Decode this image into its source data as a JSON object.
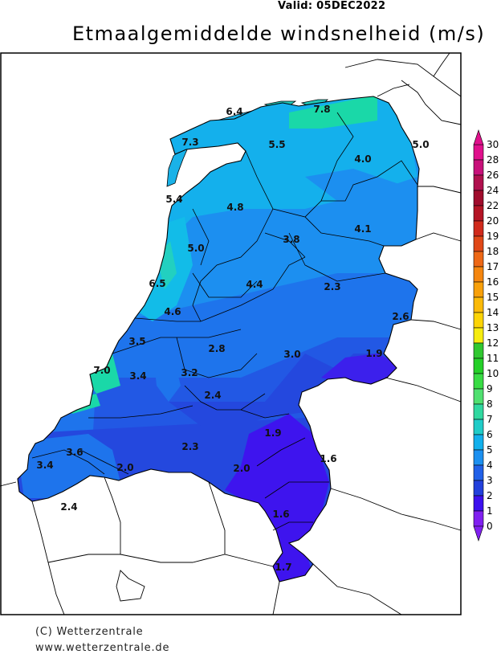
{
  "header": {
    "valid": "Valid:  05DEC2022",
    "title": "Etmaalgemiddelde windsnelheid (m/s)"
  },
  "credits": {
    "line1": "(C) Wetterzentrale",
    "line2": "www.wetterzentrale.de"
  },
  "legend": {
    "values": [
      "30",
      "28",
      "26",
      "24",
      "22",
      "20",
      "19",
      "18",
      "17",
      "16",
      "15",
      "14",
      "13",
      "12",
      "11",
      "10",
      "9",
      "8",
      "7",
      "6",
      "5",
      "4",
      "3",
      "2",
      "1",
      "0"
    ],
    "colors": [
      "#e0108c",
      "#c8107a",
      "#b0104e",
      "#a00c2c",
      "#b41424",
      "#d02a1c",
      "#e04818",
      "#ee6816",
      "#f5860f",
      "#f8a00a",
      "#fbba08",
      "#fcd406",
      "#f6ec10",
      "#30c830",
      "#24d028",
      "#38dc44",
      "#50e070",
      "#30d8a0",
      "#20ccc8",
      "#12b0ec",
      "#1c90f0",
      "#2060e8",
      "#2240dc",
      "#3c10ee",
      "#8020f0"
    ]
  },
  "map_labels": [
    {
      "id": "6.4",
      "text": "6.4"
    },
    {
      "id": "7.8",
      "text": "7.8"
    },
    {
      "id": "7.3",
      "text": "7.3"
    },
    {
      "id": "5.5",
      "text": "5.5"
    },
    {
      "id": "5.0a",
      "text": "5.0"
    },
    {
      "id": "4.0",
      "text": "4.0"
    },
    {
      "id": "5.4",
      "text": "5.4"
    },
    {
      "id": "4.8",
      "text": "4.8"
    },
    {
      "id": "4.1",
      "text": "4.1"
    },
    {
      "id": "3.8",
      "text": "3.8"
    },
    {
      "id": "5.0b",
      "text": "5.0"
    },
    {
      "id": "6.5",
      "text": "6.5"
    },
    {
      "id": "4.4",
      "text": "4.4"
    },
    {
      "id": "2.3a",
      "text": "2.3"
    },
    {
      "id": "4.6",
      "text": "4.6"
    },
    {
      "id": "2.6",
      "text": "2.6"
    },
    {
      "id": "3.5",
      "text": "3.5"
    },
    {
      "id": "2.8",
      "text": "2.8"
    },
    {
      "id": "3.0",
      "text": "3.0"
    },
    {
      "id": "1.9a",
      "text": "1.9"
    },
    {
      "id": "7.0",
      "text": "7.0"
    },
    {
      "id": "3.4a",
      "text": "3.4"
    },
    {
      "id": "3.2",
      "text": "3.2"
    },
    {
      "id": "2.4a",
      "text": "2.4"
    },
    {
      "id": "1.9b",
      "text": "1.9"
    },
    {
      "id": "3.6",
      "text": "3.6"
    },
    {
      "id": "2.3b",
      "text": "2.3"
    },
    {
      "id": "1.6a",
      "text": "1.6"
    },
    {
      "id": "3.4b",
      "text": "3.4"
    },
    {
      "id": "2.0a",
      "text": "2.0"
    },
    {
      "id": "2.0b",
      "text": "2.0"
    },
    {
      "id": "2.4b",
      "text": "2.4"
    },
    {
      "id": "1.6b",
      "text": "1.6"
    },
    {
      "id": "1.7",
      "text": "1.7"
    }
  ]
}
